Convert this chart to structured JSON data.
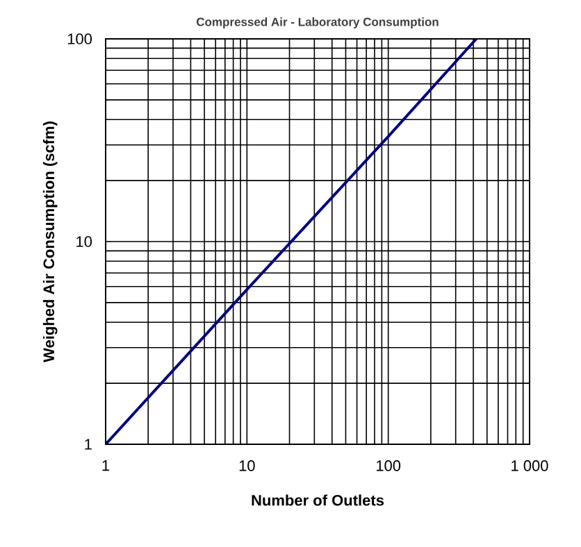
{
  "chart_data": {
    "type": "line",
    "title": "Compressed Air - Laboratory Consumption",
    "xlabel": "Number of Outlets",
    "ylabel": "Weighed Air Consumption (scfm)",
    "log": "xy",
    "grid": true,
    "marker": "none",
    "line_style": "solid",
    "xlim": [
      1,
      1000
    ],
    "ylim": [
      1,
      100
    ],
    "xticks": [
      1,
      10,
      100,
      {
        "value": 1000,
        "label": "1 000"
      }
    ],
    "yticks": [
      1,
      10,
      100
    ],
    "series": [
      {
        "color": "#000080",
        "x": [
          1,
          10,
          100,
          420
        ],
        "values": [
          1,
          5.8,
          33,
          100
        ]
      }
    ]
  }
}
